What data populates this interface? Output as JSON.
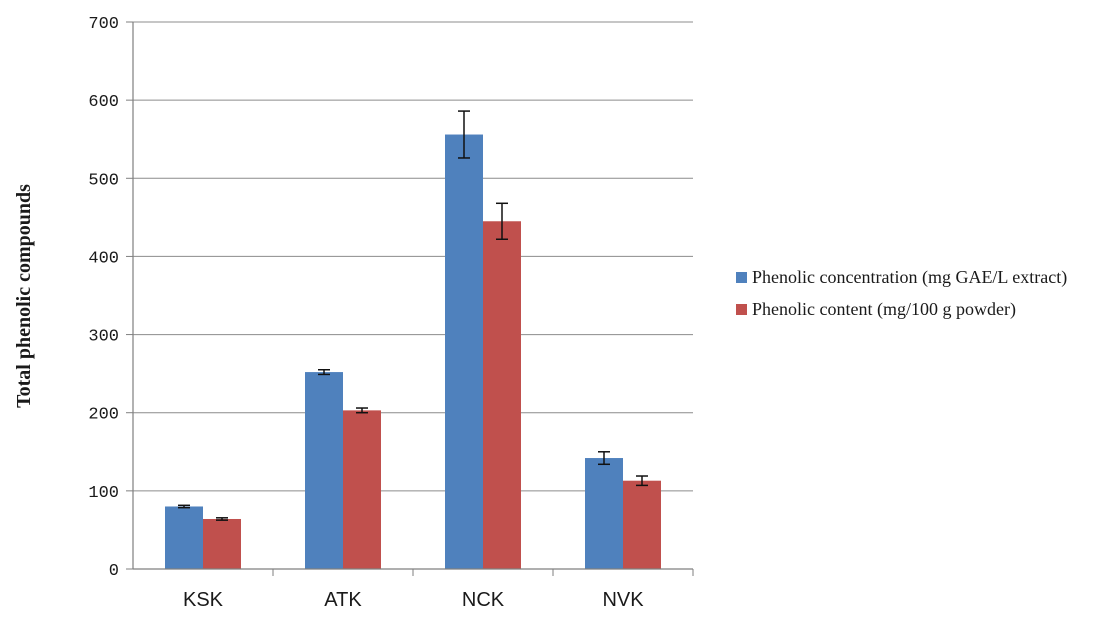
{
  "chart_data": {
    "type": "bar",
    "categories": [
      "KSK",
      "ATK",
      "NCK",
      "NVK"
    ],
    "series": [
      {
        "name": "Phenolic concentration (mg GAE/L extract)",
        "values": [
          80,
          252,
          556,
          142
        ],
        "errors": [
          1.5,
          3,
          30,
          8
        ],
        "color": "#4f81bd"
      },
      {
        "name": "Phenolic content (mg/100 g powder)",
        "values": [
          64,
          203,
          445,
          113
        ],
        "errors": [
          1.5,
          3,
          23,
          6
        ],
        "color": "#c0504d"
      }
    ],
    "title": "",
    "xlabel": "",
    "ylabel": "Total phenolic compounds",
    "ylim": [
      0,
      700
    ],
    "yticks": [
      0,
      100,
      200,
      300,
      400,
      500,
      600,
      700
    ],
    "grid": true,
    "legend_position": "right"
  }
}
